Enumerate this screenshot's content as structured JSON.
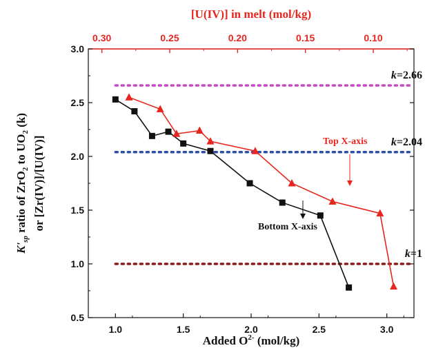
{
  "chart_data": {
    "type": "line",
    "colors": {
      "bottom_series": "#111111",
      "top_series": "#e8251f",
      "top_axis": "#e8251f",
      "k_2_66": "#c44bc4",
      "k_2_04": "#2b4fa8",
      "k_1": "#8b1a1a"
    },
    "x_bottom": {
      "label_main": "Added O",
      "label_sup": "2-",
      "label_unit": " (mol/kg)",
      "lim": [
        0.8,
        3.2
      ],
      "ticks": [
        1.0,
        1.5,
        2.0,
        2.5,
        3.0
      ],
      "tick_labels": [
        "1.0",
        "1.5",
        "2.0",
        "2.5",
        "3.0"
      ]
    },
    "x_top": {
      "label": "[U(IV)] in melt (mol/kg)",
      "lim": [
        0.31,
        0.07
      ],
      "ticks": [
        0.3,
        0.25,
        0.2,
        0.15,
        0.1
      ],
      "tick_labels": [
        "0.30",
        "0.25",
        "0.20",
        "0.15",
        "0.10"
      ]
    },
    "y": {
      "label_line1": [
        "K'",
        "sp",
        " ratio of ZrO",
        "2",
        " to UO",
        "2",
        " (k)"
      ],
      "label_line2": "or [Zr(IV)]/[U(IV)]",
      "lim": [
        0.5,
        3.0
      ],
      "ticks": [
        0.5,
        1.0,
        1.5,
        2.0,
        2.5,
        3.0
      ],
      "tick_labels": [
        "0.5",
        "1.0",
        "1.5",
        "2.0",
        "2.5",
        "3.0"
      ]
    },
    "reference_lines": [
      {
        "y": 2.66,
        "label_k": "k",
        "label_val": "=2.66"
      },
      {
        "y": 2.04,
        "label_k": "k",
        "label_val": "=2.04"
      },
      {
        "y": 1.0,
        "label_k": "k",
        "label_val": "=1"
      }
    ],
    "series": [
      {
        "name": "Bottom X-axis",
        "axis": "bottom",
        "marker": "square",
        "x": [
          1.0,
          1.14,
          1.27,
          1.39,
          1.5,
          1.7,
          1.99,
          2.23,
          2.51,
          2.72
        ],
        "y": [
          2.53,
          2.42,
          2.19,
          2.23,
          2.12,
          2.05,
          1.75,
          1.57,
          1.45,
          0.78
        ]
      },
      {
        "name": "Top X-axis",
        "axis": "top",
        "marker": "triangle",
        "x": [
          0.28,
          0.257,
          0.245,
          0.228,
          0.22,
          0.187,
          0.16,
          0.13,
          0.095,
          0.085
        ],
        "y": [
          2.55,
          2.44,
          2.21,
          2.24,
          2.14,
          2.05,
          1.75,
          1.58,
          1.47,
          0.79
        ]
      }
    ]
  }
}
